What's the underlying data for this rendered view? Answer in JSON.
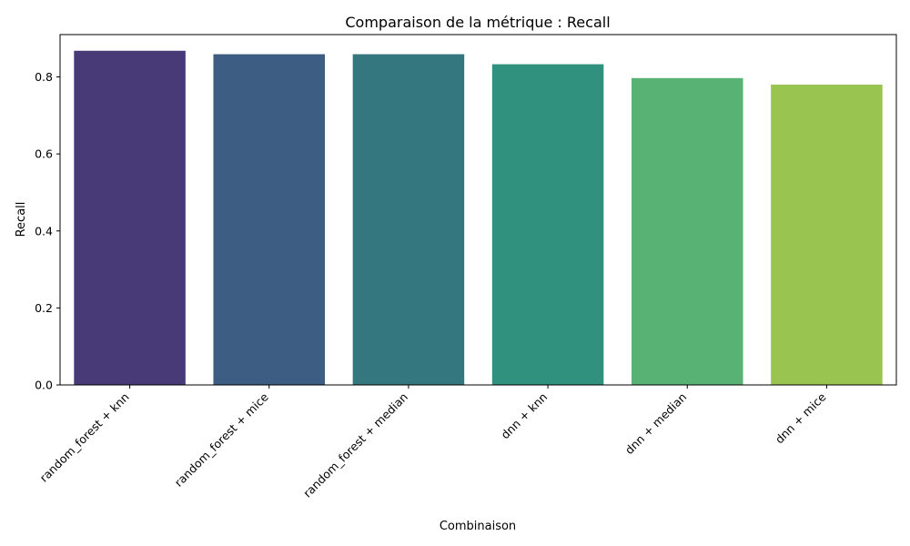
{
  "chart_data": {
    "type": "bar",
    "title": "Comparaison de la métrique : Recall",
    "xlabel": "Combinaison",
    "ylabel": "Recall",
    "categories": [
      "random_forest + knn",
      "random_forest + mice",
      "random_forest + median",
      "dnn + knn",
      "dnn + median",
      "dnn + mice"
    ],
    "values": [
      0.868,
      0.859,
      0.859,
      0.833,
      0.797,
      0.78
    ],
    "colors": [
      "#473a77",
      "#3e5d83",
      "#35777f",
      "#30917f",
      "#58b273",
      "#99c44f"
    ],
    "ylim": [
      0,
      0.91
    ],
    "yticks": [
      0.0,
      0.2,
      0.4,
      0.6,
      0.8
    ],
    "ytick_labels": [
      "0.0",
      "0.2",
      "0.4",
      "0.6",
      "0.8"
    ],
    "grid": false,
    "legend": "none"
  }
}
